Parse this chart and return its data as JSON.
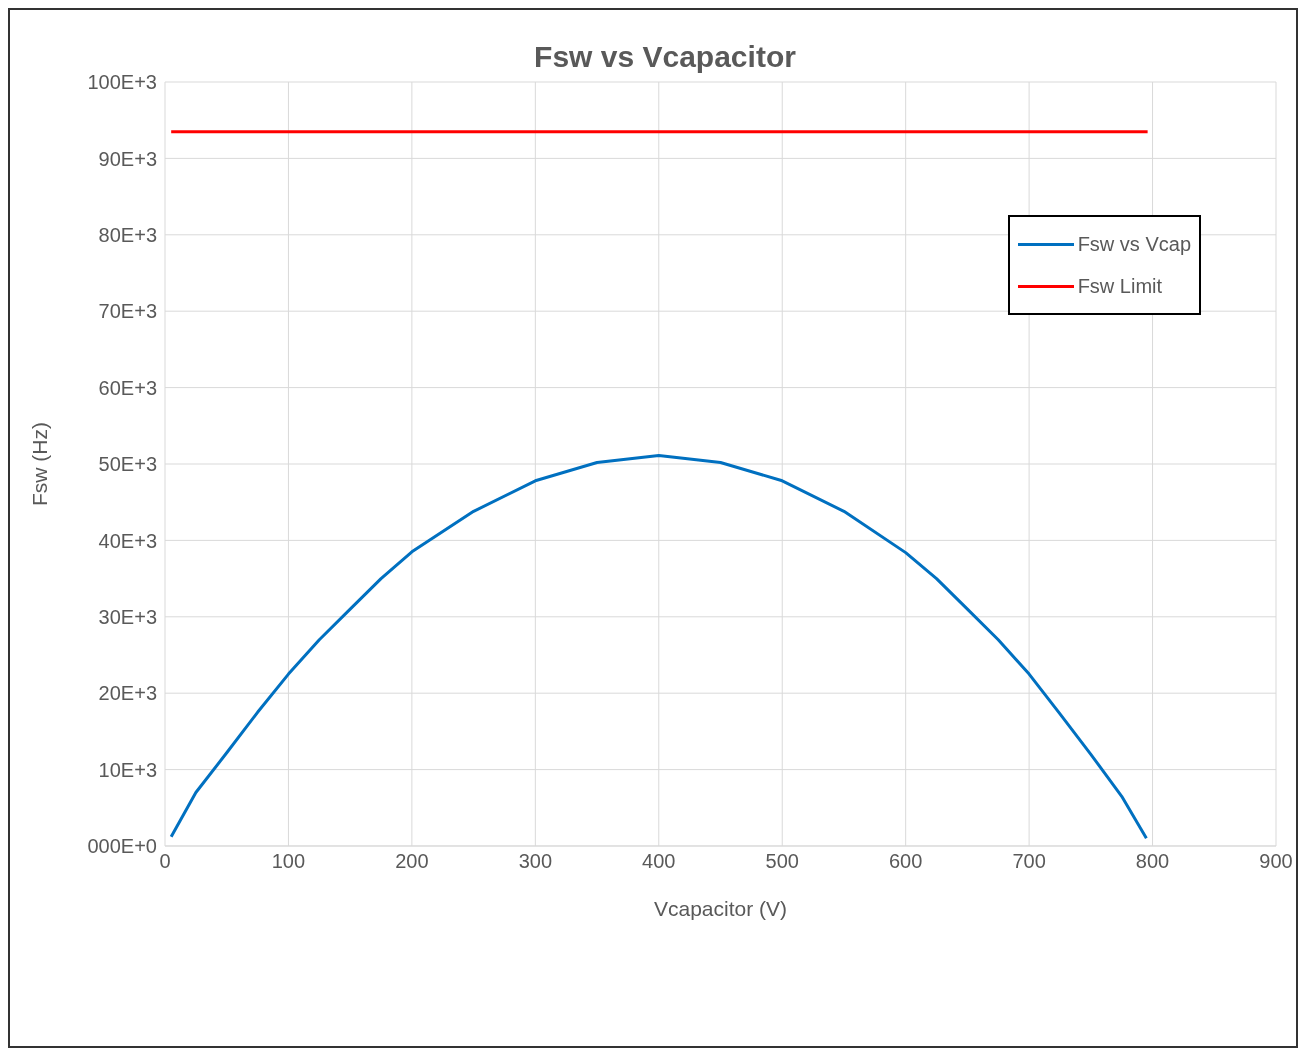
{
  "chart_data": {
    "type": "line",
    "title": "Fsw vs Vcapacitor",
    "xlabel": "Vcapacitor (V)",
    "ylabel": "Fsw (Hz)",
    "xlim": [
      0,
      900
    ],
    "xticks": [
      0,
      100,
      200,
      300,
      400,
      500,
      600,
      700,
      800,
      900
    ],
    "ylim": [
      0,
      100000
    ],
    "yticks": [
      {
        "value": 0,
        "label": "000E+0"
      },
      {
        "value": 10000,
        "label": "10E+3"
      },
      {
        "value": 20000,
        "label": "20E+3"
      },
      {
        "value": 30000,
        "label": "30E+3"
      },
      {
        "value": 40000,
        "label": "40E+3"
      },
      {
        "value": 50000,
        "label": "50E+3"
      },
      {
        "value": 60000,
        "label": "60E+3"
      },
      {
        "value": 70000,
        "label": "70E+3"
      },
      {
        "value": 80000,
        "label": "80E+3"
      },
      {
        "value": 90000,
        "label": "90E+3"
      },
      {
        "value": 100000,
        "label": "100E+3"
      }
    ],
    "grid": true,
    "legend": "top right",
    "marker": "none",
    "line_style": "solid",
    "series": [
      {
        "name": "Fsw vs Vcap",
        "color": "#0070c0",
        "x": [
          5,
          25,
          50,
          75,
          100,
          125,
          150,
          175,
          200,
          250,
          300,
          350,
          400,
          450,
          500,
          550,
          600,
          625,
          650,
          675,
          700,
          725,
          750,
          775,
          795
        ],
        "values": [
          1200,
          7000,
          12200,
          17500,
          22500,
          27000,
          31000,
          35000,
          38500,
          43800,
          47800,
          50200,
          51100,
          50200,
          47800,
          43800,
          38400,
          35000,
          31000,
          27000,
          22500,
          17300,
          12000,
          6500,
          1000
        ]
      },
      {
        "name": "Fsw Limit",
        "color": "#ff0000",
        "x": [
          5,
          796
        ],
        "values": [
          93500,
          93500
        ]
      }
    ]
  }
}
